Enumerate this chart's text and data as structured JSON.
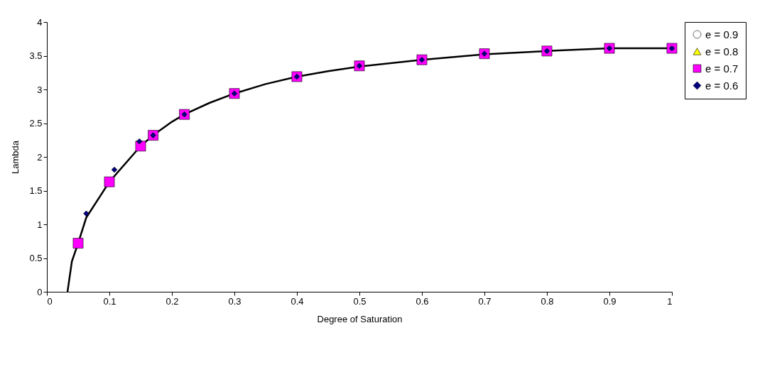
{
  "chart_data": {
    "type": "scatter",
    "xlabel": "Degree of Saturation",
    "ylabel": "Lambda",
    "xlim": [
      0,
      1
    ],
    "ylim": [
      0,
      4
    ],
    "xticks": [
      0,
      0.1,
      0.2,
      0.3,
      0.4,
      0.5,
      0.6,
      0.7,
      0.8,
      0.9,
      1
    ],
    "yticks": [
      0,
      0.5,
      1,
      1.5,
      2,
      2.5,
      3,
      3.5,
      4
    ],
    "grid": false,
    "legend": "right",
    "series": [
      {
        "name": "e = 0.9",
        "marker": "circle",
        "color": "#ffffff"
      },
      {
        "name": "e = 0.8",
        "marker": "triangle",
        "color": "#ffff00"
      },
      {
        "type": "line",
        "marker": "none",
        "color": "#000000",
        "x": [
          0.033,
          0.04,
          0.05,
          0.063,
          0.1,
          0.15,
          0.17,
          0.2,
          0.22,
          0.26,
          0.3,
          0.35,
          0.4,
          0.45,
          0.5,
          0.6,
          0.7,
          0.8,
          0.9,
          1
        ],
        "values": [
          0,
          0.45,
          0.72,
          1.1,
          1.63,
          2.16,
          2.32,
          2.52,
          2.63,
          2.8,
          2.94,
          3.08,
          3.19,
          3.27,
          3.34,
          3.44,
          3.52,
          3.57,
          3.61,
          3.61
        ]
      },
      {
        "name": "e = 0.7",
        "marker": "square",
        "color": "#ff00ff",
        "x": [
          0.05,
          0.1,
          0.15,
          0.17,
          0.22,
          0.3,
          0.4,
          0.5,
          0.6,
          0.7,
          0.8,
          0.9,
          1
        ],
        "values": [
          0.72,
          1.63,
          2.16,
          2.32,
          2.63,
          2.94,
          3.19,
          3.35,
          3.44,
          3.53,
          3.57,
          3.61,
          3.61
        ]
      },
      {
        "name": "e = 0.6",
        "marker": "diamond",
        "color": "#000080",
        "x": [
          0.063,
          0.108,
          0.148,
          0.17,
          0.22,
          0.3,
          0.4,
          0.5,
          0.6,
          0.7,
          0.8,
          0.9,
          1
        ],
        "values": [
          1.16,
          1.81,
          2.23,
          2.32,
          2.63,
          2.94,
          3.19,
          3.35,
          3.44,
          3.53,
          3.57,
          3.61,
          3.61
        ]
      }
    ]
  }
}
